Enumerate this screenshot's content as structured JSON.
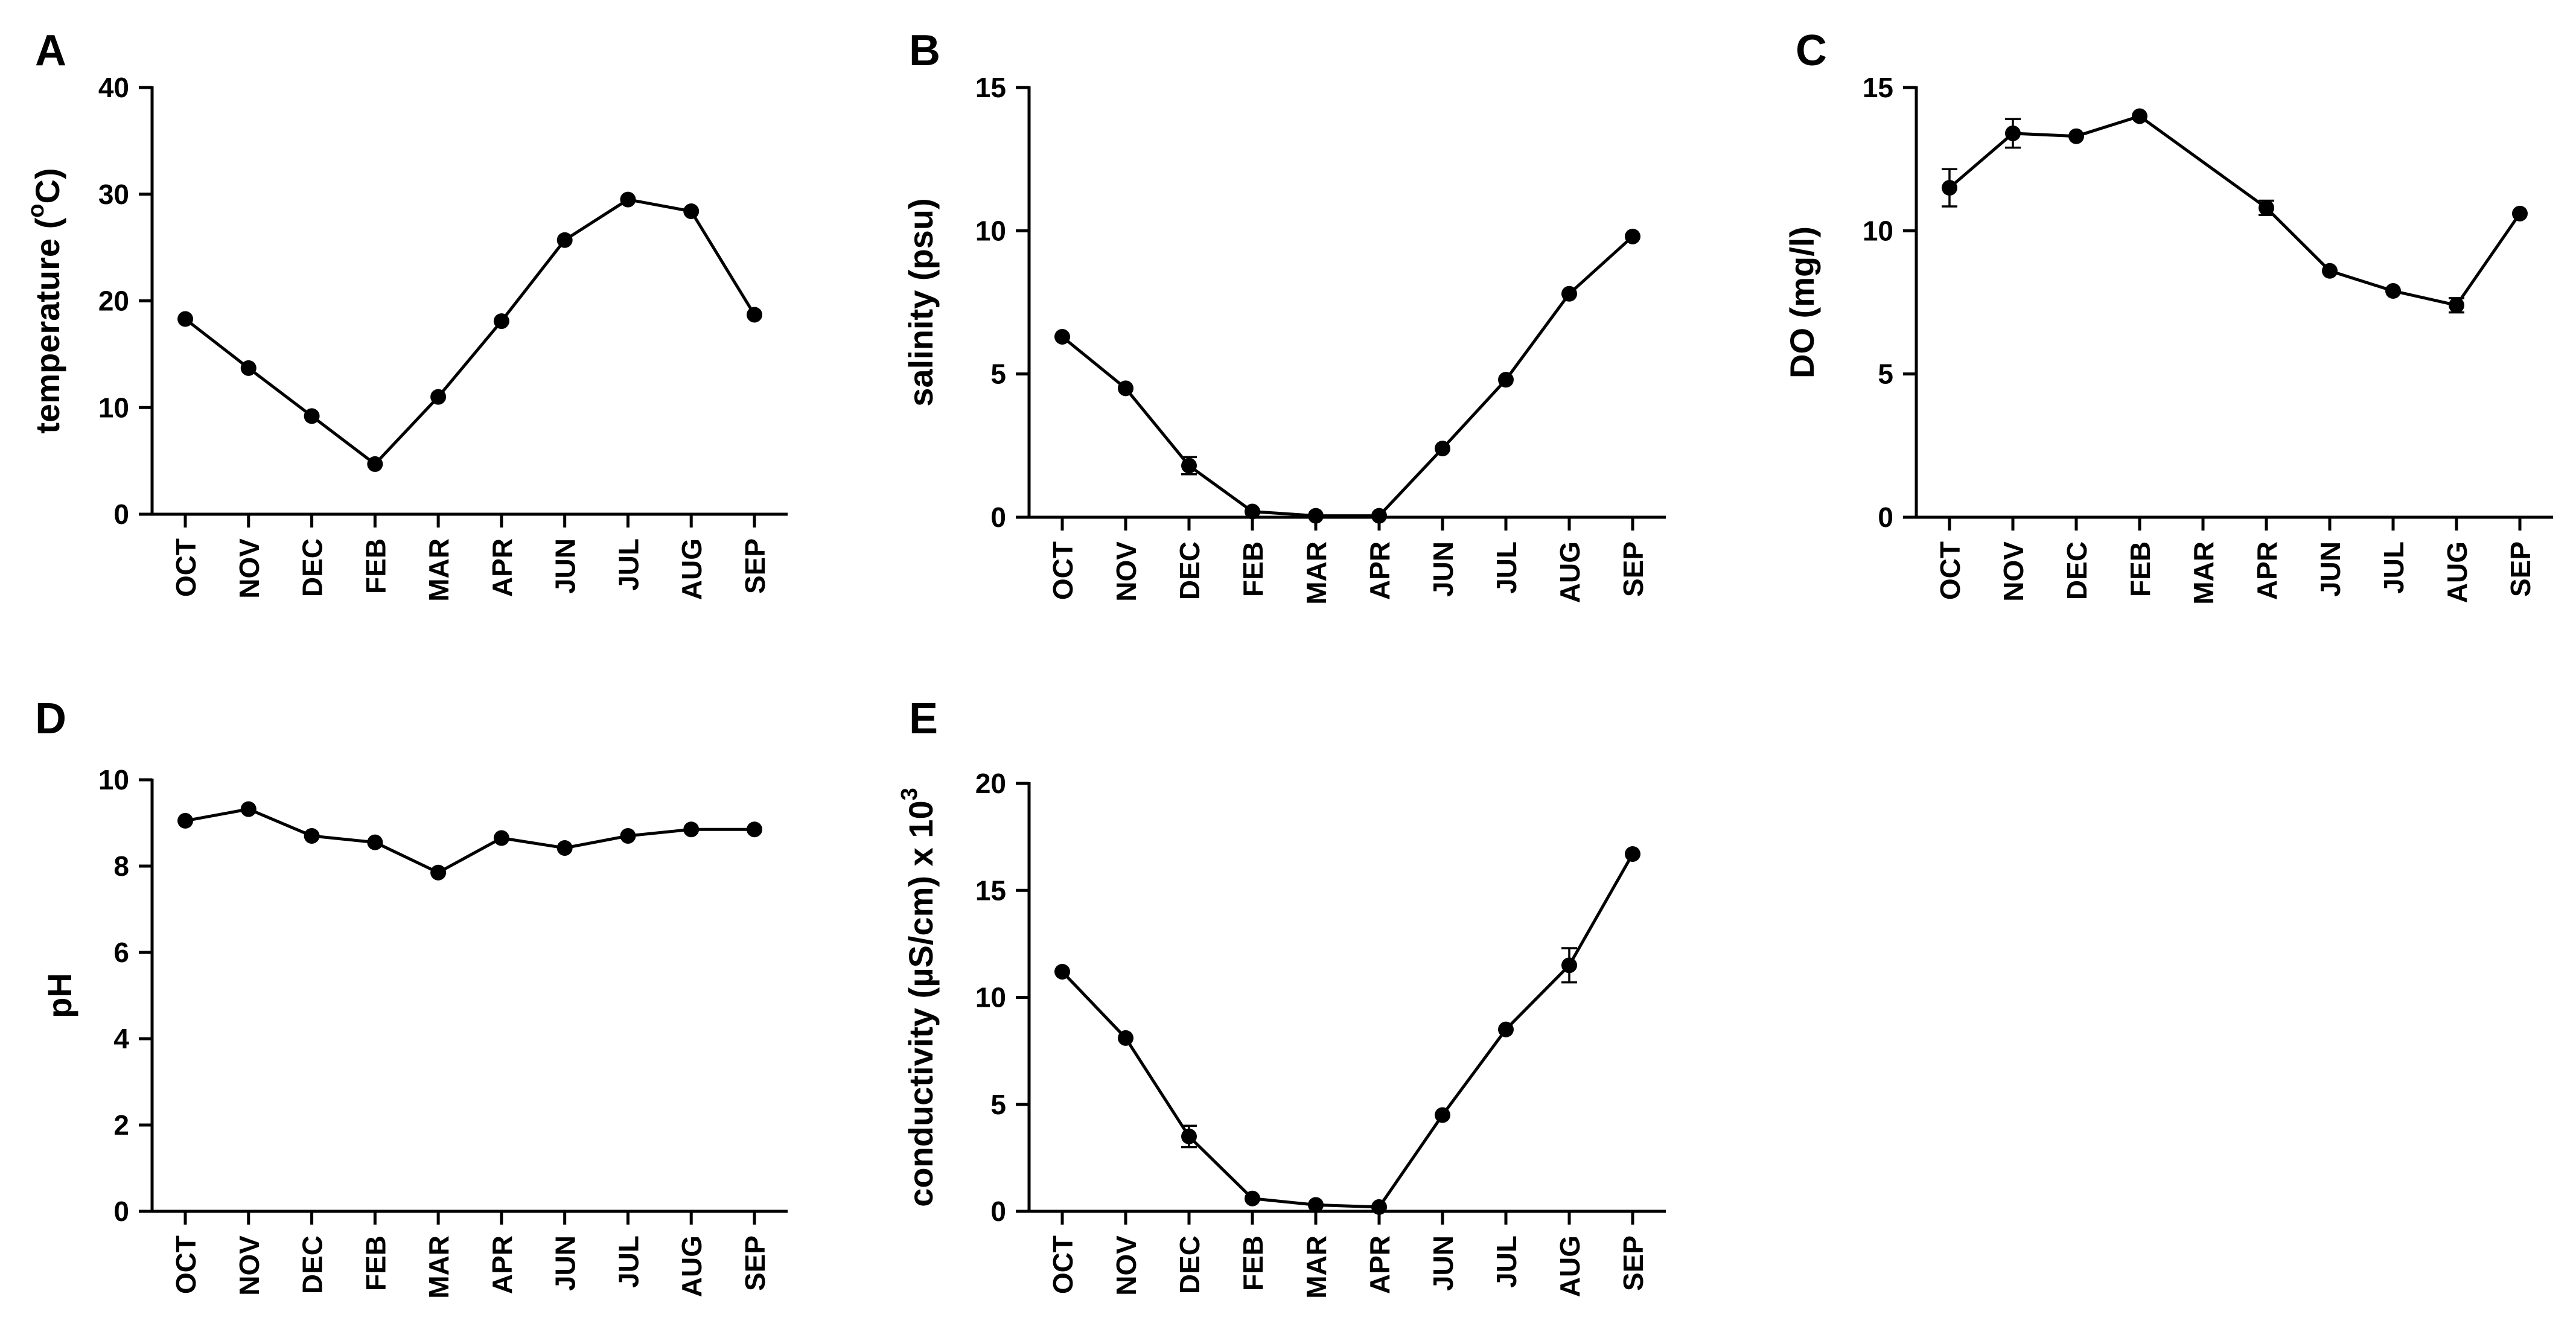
{
  "chart_data": [
    {
      "panel": "A",
      "type": "line",
      "ylabel": "temperature  (°C)",
      "ylabel_parts": [
        "temperature  (",
        "o",
        "C)"
      ],
      "ylim": [
        0,
        40
      ],
      "yticks": [
        0,
        10,
        20,
        30,
        40
      ],
      "categories": [
        "OCT",
        "NOV",
        "DEC",
        "FEB",
        "MAR",
        "APR",
        "JUN",
        "JUL",
        "AUG",
        "SEP"
      ],
      "values": [
        18.3,
        13.7,
        9.2,
        4.7,
        11.0,
        18.1,
        25.7,
        29.5,
        28.4,
        18.7
      ],
      "errors": [
        0,
        0,
        0,
        0,
        0,
        0,
        0,
        0,
        0,
        0
      ]
    },
    {
      "panel": "B",
      "type": "line",
      "ylabel": "salinity (psu)",
      "ylabel_parts": [
        "salinity (psu)"
      ],
      "ylim": [
        0,
        15
      ],
      "yticks": [
        0,
        5,
        10,
        15
      ],
      "categories": [
        "OCT",
        "NOV",
        "DEC",
        "FEB",
        "MAR",
        "APR",
        "JUN",
        "JUL",
        "AUG",
        "SEP"
      ],
      "values": [
        6.3,
        4.5,
        1.8,
        0.2,
        0.05,
        0.05,
        2.4,
        4.8,
        7.8,
        9.8
      ],
      "errors": [
        0,
        0,
        0.3,
        0,
        0,
        0,
        0,
        0,
        0,
        0
      ]
    },
    {
      "panel": "C",
      "type": "line",
      "ylabel": "DO (mg/l)",
      "ylabel_parts": [
        "DO (mg/l)"
      ],
      "ylim": [
        0,
        15
      ],
      "yticks": [
        0,
        5,
        10,
        15
      ],
      "categories": [
        "OCT",
        "NOV",
        "DEC",
        "FEB",
        "MAR",
        "APR",
        "JUN",
        "JUL",
        "AUG",
        "SEP"
      ],
      "values": [
        11.5,
        13.4,
        13.3,
        14.0,
        null,
        10.8,
        8.6,
        7.9,
        7.4,
        10.6
      ],
      "errors": [
        0.65,
        0.5,
        0,
        0,
        0,
        0.25,
        0,
        0,
        0.25,
        0
      ]
    },
    {
      "panel": "D",
      "type": "line",
      "ylabel": "pH",
      "ylabel_parts": [
        "pH"
      ],
      "ylim": [
        0,
        10
      ],
      "yticks": [
        0,
        2,
        4,
        6,
        8,
        10
      ],
      "categories": [
        "OCT",
        "NOV",
        "DEC",
        "FEB",
        "MAR",
        "APR",
        "JUN",
        "JUL",
        "AUG",
        "SEP"
      ],
      "values": [
        9.05,
        9.32,
        8.7,
        8.55,
        7.85,
        8.65,
        8.42,
        8.7,
        8.85,
        8.85
      ],
      "errors": [
        0,
        0,
        0,
        0,
        0,
        0,
        0,
        0,
        0,
        0
      ]
    },
    {
      "panel": "E",
      "type": "line",
      "ylabel": "conductivity (µS/cm) x 10³",
      "ylabel_parts": [
        "conductivity (µS/cm) x 10",
        "3",
        ""
      ],
      "ylim": [
        0,
        20
      ],
      "yticks": [
        0,
        5,
        10,
        15,
        20
      ],
      "categories": [
        "OCT",
        "NOV",
        "DEC",
        "FEB",
        "MAR",
        "APR",
        "JUN",
        "JUL",
        "AUG",
        "SEP"
      ],
      "values": [
        11.2,
        8.1,
        3.5,
        0.6,
        0.3,
        0.2,
        4.5,
        8.5,
        11.5,
        16.7
      ],
      "errors": [
        0,
        0,
        0.5,
        0,
        0,
        0,
        0,
        0,
        0.8,
        0
      ]
    }
  ]
}
